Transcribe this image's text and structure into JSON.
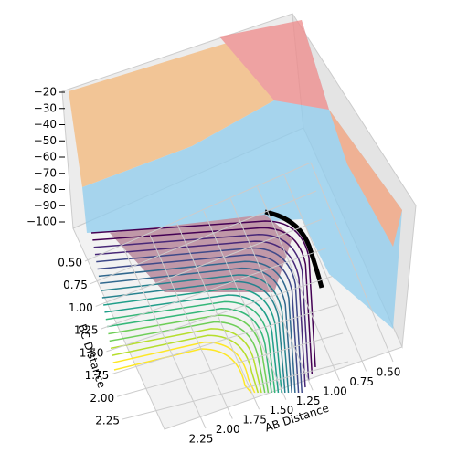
{
  "chart_data": {
    "type": "surface3d",
    "xlabel": "AB Distance",
    "ylabel": "BC Distance",
    "xlim": [
      0.5,
      2.25
    ],
    "ylim": [
      0.5,
      2.25
    ],
    "zlim": [
      -100,
      -20
    ],
    "xticks": [
      {
        "value": 0.5,
        "label": "0.50"
      },
      {
        "value": 0.75,
        "label": "0.75"
      },
      {
        "value": 1.0,
        "label": "1.00"
      },
      {
        "value": 1.25,
        "label": "1.25"
      },
      {
        "value": 1.5,
        "label": "1.50"
      },
      {
        "value": 1.75,
        "label": "1.75"
      },
      {
        "value": 2.0,
        "label": "2.00"
      },
      {
        "value": 2.25,
        "label": "2.25"
      }
    ],
    "yticks": [
      {
        "value": 0.5,
        "label": "0.50"
      },
      {
        "value": 0.75,
        "label": "0.75"
      },
      {
        "value": 1.0,
        "label": "1.00"
      },
      {
        "value": 1.25,
        "label": "1.25"
      },
      {
        "value": 1.5,
        "label": "1.50"
      },
      {
        "value": 1.75,
        "label": "1.75"
      },
      {
        "value": 2.0,
        "label": "2.00"
      },
      {
        "value": 2.25,
        "label": "2.25"
      }
    ],
    "zticks": [
      {
        "value": -20,
        "label": "−20"
      },
      {
        "value": -30,
        "label": "−30"
      },
      {
        "value": -40,
        "label": "−40"
      },
      {
        "value": -50,
        "label": "−50"
      },
      {
        "value": -60,
        "label": "−60"
      },
      {
        "value": -70,
        "label": "−70"
      },
      {
        "value": -80,
        "label": "−80"
      },
      {
        "value": -90,
        "label": "−90"
      },
      {
        "value": -100,
        "label": "−100"
      }
    ],
    "grid": true
  }
}
